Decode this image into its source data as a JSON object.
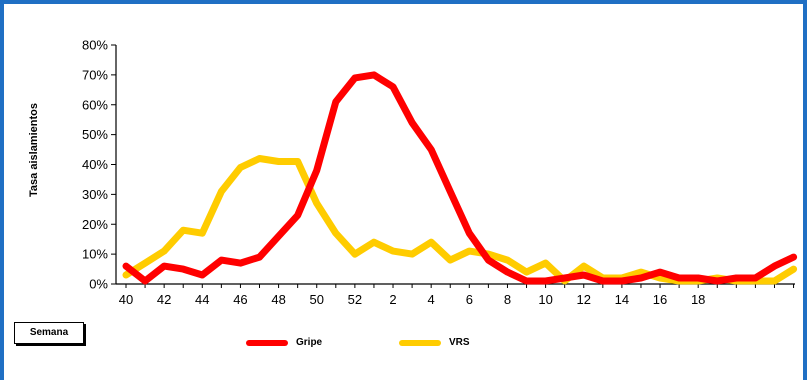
{
  "chart_data": {
    "type": "line",
    "ylabel": "Tasa aislamientos",
    "xlabel": "Semana",
    "ylim": [
      0,
      80
    ],
    "y_ticks": [
      "0%",
      "10%",
      "20%",
      "30%",
      "40%",
      "50%",
      "60%",
      "70%",
      "80%"
    ],
    "x_tick_labels": [
      "40",
      "42",
      "44",
      "46",
      "48",
      "50",
      "52",
      "2",
      "4",
      "6",
      "8",
      "10",
      "12",
      "14",
      "16",
      "18"
    ],
    "legend": "bottom",
    "grid": false,
    "x": [
      40,
      41,
      42,
      43,
      44,
      45,
      46,
      47,
      48,
      49,
      50,
      51,
      52,
      1,
      2,
      3,
      4,
      5,
      6,
      7,
      8,
      9,
      10,
      11,
      12,
      13,
      14,
      15,
      16,
      17,
      18,
      19,
      20,
      21,
      22,
      23
    ],
    "series": [
      {
        "name": "Gripe",
        "color": "#ff0000",
        "values": [
          6,
          1,
          6,
          5,
          3,
          8,
          7,
          9,
          16,
          23,
          38,
          61,
          69,
          70,
          66,
          54,
          45,
          31,
          17,
          8,
          4,
          1,
          1,
          2,
          3,
          1,
          1,
          2,
          4,
          2,
          2,
          1,
          2,
          2,
          6,
          9
        ]
      },
      {
        "name": "VRS",
        "color": "#ffcc00",
        "values": [
          3,
          7,
          11,
          18,
          17,
          31,
          39,
          42,
          41,
          41,
          27,
          17,
          10,
          14,
          11,
          10,
          14,
          8,
          11,
          10,
          8,
          4,
          7,
          1,
          6,
          2,
          2,
          4,
          2,
          1,
          1,
          2,
          1,
          1,
          1,
          5
        ]
      }
    ]
  }
}
